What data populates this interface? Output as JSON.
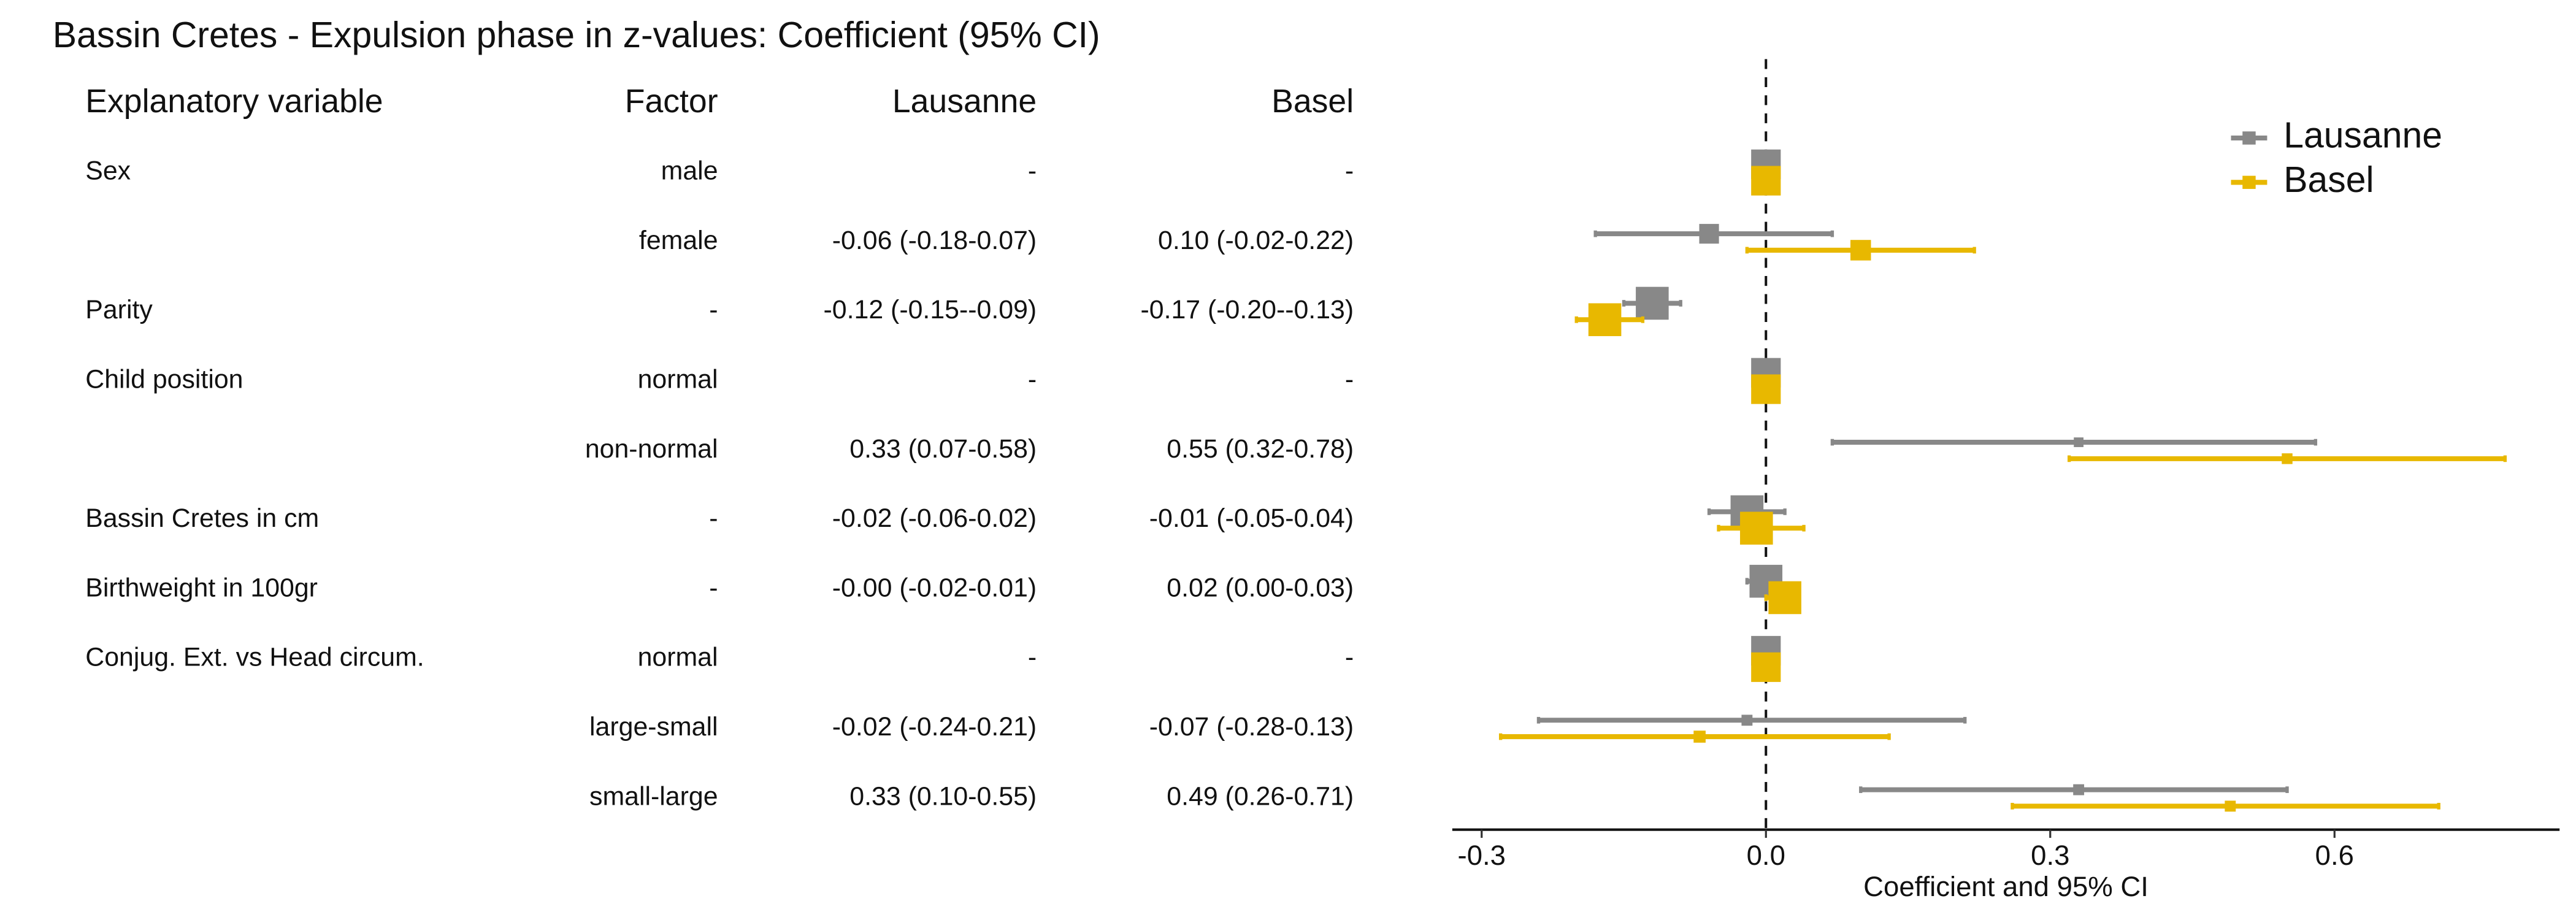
{
  "chart_data": {
    "type": "forest",
    "title": "Bassin Cretes - Expulsion phase in z-values: Coefficient (95% CI)",
    "columns": [
      "Explanatory variable",
      "Factor",
      "Lausanne",
      "Basel"
    ],
    "variables": [
      "Sex",
      null,
      "Parity",
      "Child position",
      null,
      "Bassin Cretes in cm",
      "Birthweight in 100gr",
      "Conjug. Ext. vs Head circum.",
      null,
      null
    ],
    "categories": [
      "male",
      "female",
      "-",
      "normal",
      "non-normal",
      "-",
      "-",
      "normal",
      "large-small",
      "small-large"
    ],
    "series": [
      {
        "name": "Lausanne",
        "color": "#888888",
        "values": [
          0,
          -0.06,
          -0.12,
          0,
          0.33,
          -0.02,
          0,
          0,
          -0.02,
          0.33
        ],
        "lower": [
          null,
          -0.18,
          -0.15,
          null,
          0.07,
          -0.06,
          -0.02,
          null,
          -0.24,
          0.1
        ],
        "upper": [
          null,
          0.07,
          -0.09,
          null,
          0.58,
          0.02,
          0.01,
          null,
          0.21,
          0.55
        ],
        "value_labels": [
          "-",
          "-0.06 (-0.18-0.07)",
          "-0.12 (-0.15--0.09)",
          "-",
          "0.33 (0.07-0.58)",
          "-0.02 (-0.06-0.02)",
          "-0.00 (-0.02-0.01)",
          "-",
          "-0.02 (-0.24-0.21)",
          "0.33 (0.10-0.55)"
        ]
      },
      {
        "name": "Basel",
        "color": "#E8B800",
        "values": [
          0,
          0.1,
          -0.17,
          0,
          0.55,
          -0.01,
          0.02,
          0,
          -0.07,
          0.49
        ],
        "lower": [
          null,
          -0.02,
          -0.2,
          null,
          0.32,
          -0.05,
          0.0,
          null,
          -0.28,
          0.26
        ],
        "upper": [
          null,
          0.22,
          -0.13,
          null,
          0.78,
          0.04,
          0.03,
          null,
          0.13,
          0.71
        ],
        "value_labels": [
          "-",
          "0.10 (-0.02-0.22)",
          "-0.17 (-0.20--0.13)",
          "-",
          "0.55 (0.32-0.78)",
          "-0.01 (-0.05-0.04)",
          "0.02 (0.00-0.03)",
          "-",
          "-0.07 (-0.28-0.13)",
          "0.49 (0.26-0.71)"
        ]
      }
    ],
    "xlabel": "Coefficient and 95% CI",
    "xlim": [
      -0.331,
      0.8375
    ],
    "xticks": [
      -0.3,
      {
        "value": 0,
        "label": "0.0"
      },
      0.3,
      0.6
    ],
    "vline": 0,
    "legend": "top-right"
  }
}
